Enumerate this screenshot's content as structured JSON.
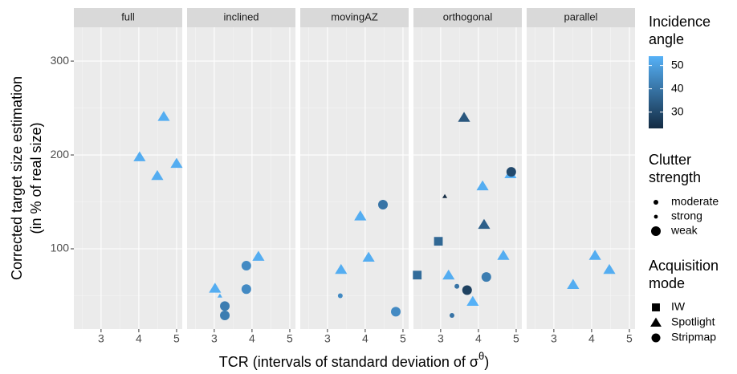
{
  "chart_data": {
    "type": "scatter",
    "x_label": {
      "text": "TCR (intervals of standard deviation of σ",
      "sup": "θ",
      "tail": ")"
    },
    "y_label": [
      "Corrected target size estimation",
      "(in % of real size)"
    ],
    "xlim": [
      2.28,
      5.15
    ],
    "xticks": [
      3,
      4,
      5
    ],
    "ylim": [
      14.5,
      336
    ],
    "yticks": [
      100,
      200,
      300
    ],
    "grid": true,
    "color_legend": {
      "title": "Incidence angle",
      "ticks": [
        30,
        40,
        50
      ]
    },
    "size_legend": {
      "title": "Clutter strength",
      "levels": [
        "moderate",
        "strong",
        "weak"
      ]
    },
    "shape_legend": {
      "title": "Acquisition mode",
      "levels": [
        "IW",
        "Spotlight",
        "Stripmap"
      ]
    },
    "facets": [
      {
        "title": "full",
        "x": [
          4.02,
          4.66,
          4.49,
          5.0
        ],
        "values": [
          198,
          241,
          178,
          191
        ],
        "angle": [
          53,
          53,
          53,
          53
        ],
        "strength": [
          "weak",
          "weak",
          "weak",
          "weak"
        ],
        "mode": [
          "Spotlight",
          "Spotlight",
          "Spotlight",
          "Spotlight"
        ]
      },
      {
        "title": "inclined",
        "x": [
          3.02,
          3.15,
          3.28,
          3.28,
          3.85,
          3.85,
          4.17
        ],
        "values": [
          58,
          50,
          39,
          29,
          82,
          57,
          92
        ],
        "angle": [
          53,
          53,
          42,
          42,
          45,
          45,
          53
        ],
        "strength": [
          "weak",
          "strong",
          "weak",
          "weak",
          "weak",
          "weak",
          "weak"
        ],
        "mode": [
          "Spotlight",
          "Spotlight",
          "Stripmap",
          "Stripmap",
          "Stripmap",
          "Stripmap",
          "Spotlight"
        ]
      },
      {
        "title": "movingAZ",
        "x": [
          3.36,
          3.34,
          3.87,
          4.09,
          4.47,
          4.81
        ],
        "values": [
          78,
          50,
          135,
          91,
          147,
          33
        ],
        "angle": [
          53,
          45,
          53,
          53,
          40,
          45
        ],
        "strength": [
          "weak",
          "moderate",
          "weak",
          "weak",
          "weak",
          "weak"
        ],
        "mode": [
          "Spotlight",
          "Stripmap",
          "Spotlight",
          "Spotlight",
          "Stripmap",
          "Stripmap"
        ]
      },
      {
        "title": "orthogonal",
        "x": [
          2.38,
          2.94,
          3.11,
          3.62,
          3.21,
          3.43,
          3.3,
          3.7,
          3.85,
          4.11,
          4.15,
          4.21,
          4.66,
          4.85,
          4.87
        ],
        "values": [
          72,
          108,
          156,
          240,
          72,
          60,
          29,
          56,
          44,
          167,
          126,
          70,
          93,
          180,
          182
        ],
        "angle": [
          38,
          37,
          23,
          33,
          53,
          40,
          40,
          28,
          54,
          53,
          35,
          42,
          53,
          54,
          30
        ],
        "strength": [
          "weak",
          "weak",
          "strong",
          "weak",
          "weak",
          "moderate",
          "moderate",
          "weak",
          "weak",
          "weak",
          "weak",
          "weak",
          "weak",
          "weak",
          "weak"
        ],
        "mode": [
          "IW",
          "IW",
          "Spotlight",
          "Spotlight",
          "Spotlight",
          "Stripmap",
          "Stripmap",
          "Stripmap",
          "Spotlight",
          "Spotlight",
          "Spotlight",
          "Stripmap",
          "Spotlight",
          "Spotlight",
          "Stripmap"
        ]
      },
      {
        "title": "parallel",
        "x": [
          3.51,
          4.09,
          4.47
        ],
        "values": [
          62,
          93,
          78
        ],
        "angle": [
          53,
          53,
          53
        ],
        "strength": [
          "weak",
          "weak",
          "weak"
        ],
        "mode": [
          "Spotlight",
          "Spotlight",
          "Spotlight"
        ]
      }
    ]
  }
}
